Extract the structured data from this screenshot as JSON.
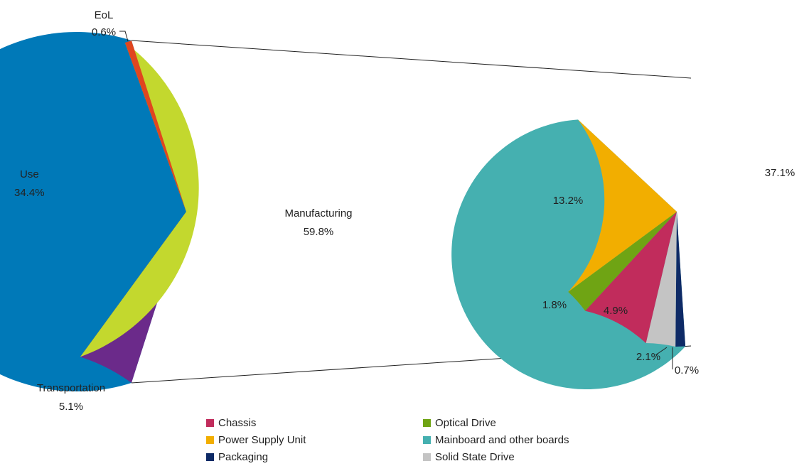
{
  "chart_data": [
    {
      "type": "pie",
      "slices": [
        {
          "name": "Manufacturing",
          "value": 59.8,
          "label": "59.8%",
          "color": "#0079B8"
        },
        {
          "name": "Transportation",
          "value": 5.1,
          "label": "5.1%",
          "color": "#6B2A8A"
        },
        {
          "name": "Use",
          "value": 34.4,
          "label": "34.4%",
          "color": "#C3D82E"
        },
        {
          "name": "EoL",
          "value": 0.6,
          "label": "0.6%",
          "color": "#E0461F"
        }
      ],
      "exploded_slice": "Manufacturing"
    },
    {
      "type": "pie",
      "slices": [
        {
          "name": "Mainboard and other boards",
          "value": 37.1,
          "label": "37.1%",
          "color": "#45B0B0"
        },
        {
          "name": "Packaging",
          "value": 0.7,
          "label": "0.7%",
          "color": "#0E2A66"
        },
        {
          "name": "Solid State Drive",
          "value": 2.1,
          "label": "2.1%",
          "color": "#C4C4C4"
        },
        {
          "name": "Chassis",
          "value": 4.9,
          "label": "4.9%",
          "color": "#C12C5C"
        },
        {
          "name": "Optical Drive",
          "value": 1.8,
          "label": "1.8%",
          "color": "#6FA414"
        },
        {
          "name": "Power Supply Unit",
          "value": 13.2,
          "label": "13.2%",
          "color": "#F2AE00"
        }
      ],
      "legend": [
        {
          "name": "Chassis",
          "color": "#C12C5C"
        },
        {
          "name": "Optical Drive",
          "color": "#6FA414"
        },
        {
          "name": "Power Supply Unit",
          "color": "#F2AE00"
        },
        {
          "name": "Mainboard and other boards",
          "color": "#45B0B0"
        },
        {
          "name": "Packaging",
          "color": "#0E2A66"
        },
        {
          "name": "Solid State Drive",
          "color": "#C4C4C4"
        }
      ],
      "legend_position": "bottom"
    }
  ]
}
